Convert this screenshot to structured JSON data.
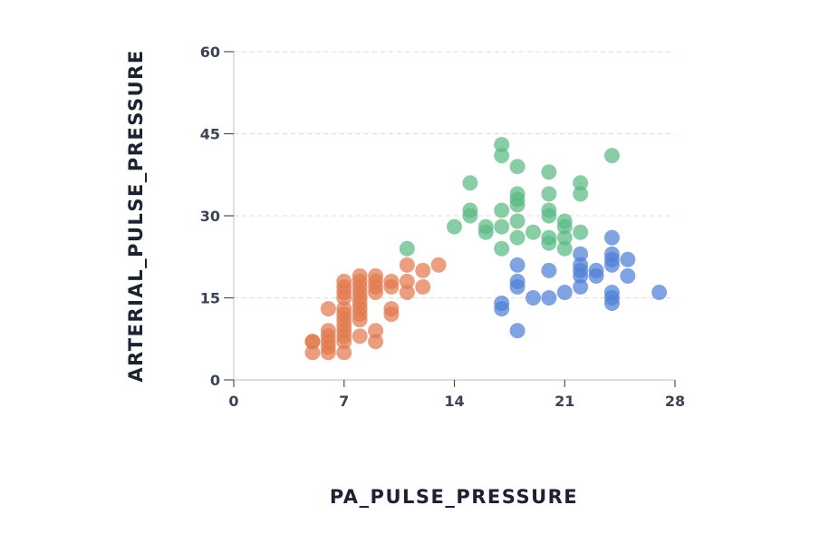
{
  "chart_data": {
    "type": "scatter",
    "xlabel": "PA_PULSE_PRESSURE",
    "ylabel": "ARTERIAL_PULSE_PRESSURE",
    "xlim": [
      0,
      28
    ],
    "ylim": [
      0,
      60
    ],
    "xticks": [
      0,
      7,
      14,
      21,
      28
    ],
    "yticks": [
      0,
      15,
      30,
      45,
      60
    ],
    "grid": "horizontal dashed",
    "series": [
      {
        "color": "#e07a4f",
        "points": [
          [
            5,
            5
          ],
          [
            5,
            7
          ],
          [
            5,
            7
          ],
          [
            6,
            5
          ],
          [
            6,
            6
          ],
          [
            6,
            7
          ],
          [
            6,
            8
          ],
          [
            6,
            9
          ],
          [
            6,
            13
          ],
          [
            7,
            5
          ],
          [
            7,
            7
          ],
          [
            7,
            8
          ],
          [
            7,
            9
          ],
          [
            7,
            10
          ],
          [
            7,
            11
          ],
          [
            7,
            12
          ],
          [
            7,
            13
          ],
          [
            7,
            15
          ],
          [
            7,
            16
          ],
          [
            7,
            17
          ],
          [
            7,
            18
          ],
          [
            8,
            8
          ],
          [
            8,
            11
          ],
          [
            8,
            12
          ],
          [
            8,
            13
          ],
          [
            8,
            14
          ],
          [
            8,
            15
          ],
          [
            8,
            16
          ],
          [
            8,
            17
          ],
          [
            8,
            18
          ],
          [
            8,
            19
          ],
          [
            9,
            7
          ],
          [
            9,
            9
          ],
          [
            9,
            16
          ],
          [
            9,
            17
          ],
          [
            9,
            18
          ],
          [
            9,
            19
          ],
          [
            10,
            12
          ],
          [
            10,
            13
          ],
          [
            10,
            17
          ],
          [
            10,
            18
          ],
          [
            11,
            16
          ],
          [
            11,
            18
          ],
          [
            11,
            21
          ],
          [
            12,
            17
          ],
          [
            12,
            20
          ],
          [
            13,
            21
          ]
        ]
      },
      {
        "color": "#5aba84",
        "points": [
          [
            11,
            24
          ],
          [
            14,
            28
          ],
          [
            15,
            30
          ],
          [
            15,
            31
          ],
          [
            15,
            36
          ],
          [
            16,
            27
          ],
          [
            16,
            28
          ],
          [
            17,
            24
          ],
          [
            17,
            28
          ],
          [
            17,
            31
          ],
          [
            17,
            41
          ],
          [
            17,
            43
          ],
          [
            18,
            26
          ],
          [
            18,
            29
          ],
          [
            18,
            32
          ],
          [
            18,
            33
          ],
          [
            18,
            34
          ],
          [
            18,
            39
          ],
          [
            19,
            27
          ],
          [
            20,
            25
          ],
          [
            20,
            26
          ],
          [
            20,
            30
          ],
          [
            20,
            31
          ],
          [
            20,
            34
          ],
          [
            20,
            38
          ],
          [
            21,
            24
          ],
          [
            21,
            26
          ],
          [
            21,
            28
          ],
          [
            21,
            29
          ],
          [
            22,
            27
          ],
          [
            22,
            34
          ],
          [
            22,
            36
          ],
          [
            24,
            41
          ]
        ]
      },
      {
        "color": "#4f7fd6",
        "points": [
          [
            17,
            13
          ],
          [
            17,
            14
          ],
          [
            18,
            9
          ],
          [
            18,
            17
          ],
          [
            18,
            18
          ],
          [
            18,
            21
          ],
          [
            19,
            15
          ],
          [
            20,
            15
          ],
          [
            20,
            20
          ],
          [
            21,
            16
          ],
          [
            22,
            17
          ],
          [
            22,
            19
          ],
          [
            22,
            20
          ],
          [
            22,
            21
          ],
          [
            22,
            23
          ],
          [
            23,
            19
          ],
          [
            23,
            20
          ],
          [
            24,
            14
          ],
          [
            24,
            15
          ],
          [
            24,
            16
          ],
          [
            24,
            21
          ],
          [
            24,
            22
          ],
          [
            24,
            23
          ],
          [
            24,
            26
          ],
          [
            25,
            19
          ],
          [
            25,
            22
          ],
          [
            27,
            16
          ]
        ]
      }
    ]
  }
}
